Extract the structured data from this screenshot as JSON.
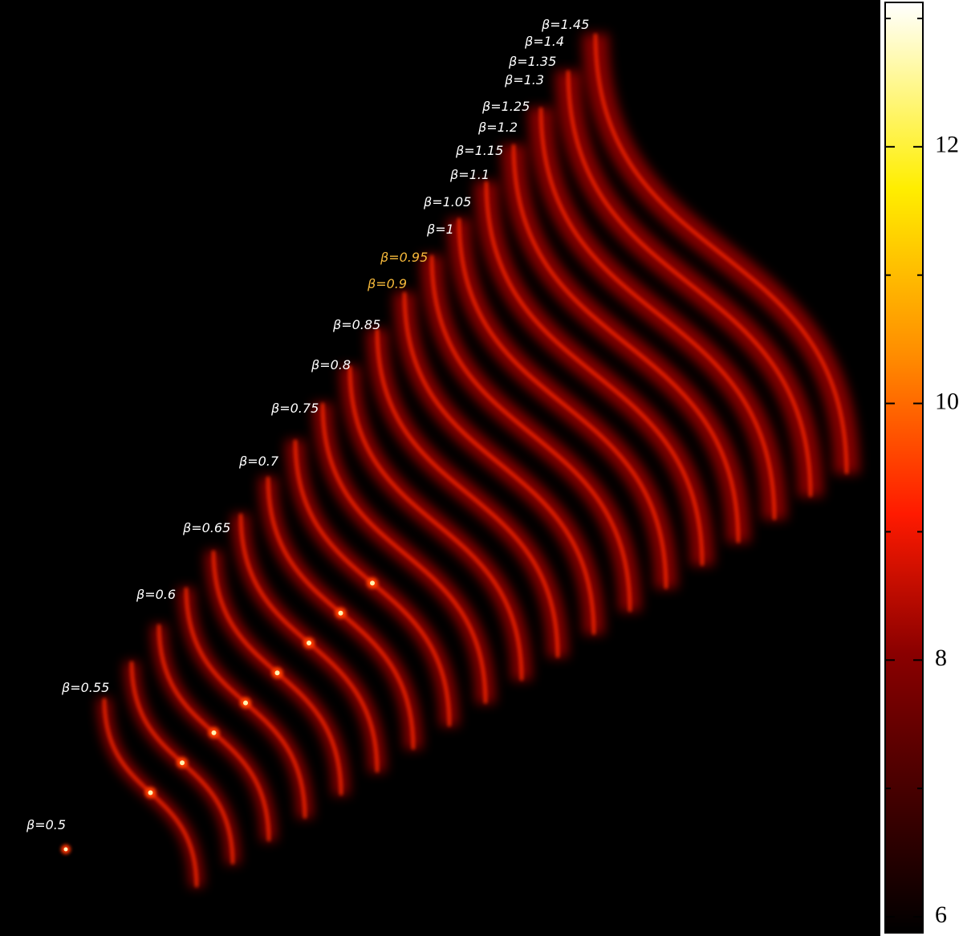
{
  "labels": [
    {
      "text": "β=0.5",
      "color": "#ffffff"
    },
    {
      "text": "β=0.55",
      "color": "#ffffff"
    },
    {
      "text": "β=0.6",
      "color": "#ffffff"
    },
    {
      "text": "β=0.65",
      "color": "#ffffff"
    },
    {
      "text": "β=0.7",
      "color": "#ffffff"
    },
    {
      "text": "β=0.75",
      "color": "#ffffff"
    },
    {
      "text": "β=0.8",
      "color": "#ffffff"
    },
    {
      "text": "β=0.85",
      "color": "#ffffff"
    },
    {
      "text": "β=0.9",
      "color": "#f5b83a"
    },
    {
      "text": "β=0.95",
      "color": "#f5b83a"
    },
    {
      "text": "β=1",
      "color": "#ffffff"
    },
    {
      "text": "β=1.05",
      "color": "#ffffff"
    },
    {
      "text": "β=1.1",
      "color": "#ffffff"
    },
    {
      "text": "β=1.15",
      "color": "#ffffff"
    },
    {
      "text": "β=1.2",
      "color": "#ffffff"
    },
    {
      "text": "β=1.25",
      "color": "#ffffff"
    },
    {
      "text": "β=1.3",
      "color": "#ffffff"
    },
    {
      "text": "β=1.35",
      "color": "#ffffff"
    },
    {
      "text": "β=1.4",
      "color": "#ffffff"
    },
    {
      "text": "β=1.45",
      "color": "#ffffff"
    }
  ],
  "colorbar": {
    "lim": [
      5.875,
      13.125
    ],
    "ticks": [
      6,
      8,
      10,
      12
    ],
    "minor_ticks": [
      7,
      9,
      11,
      13
    ]
  }
}
